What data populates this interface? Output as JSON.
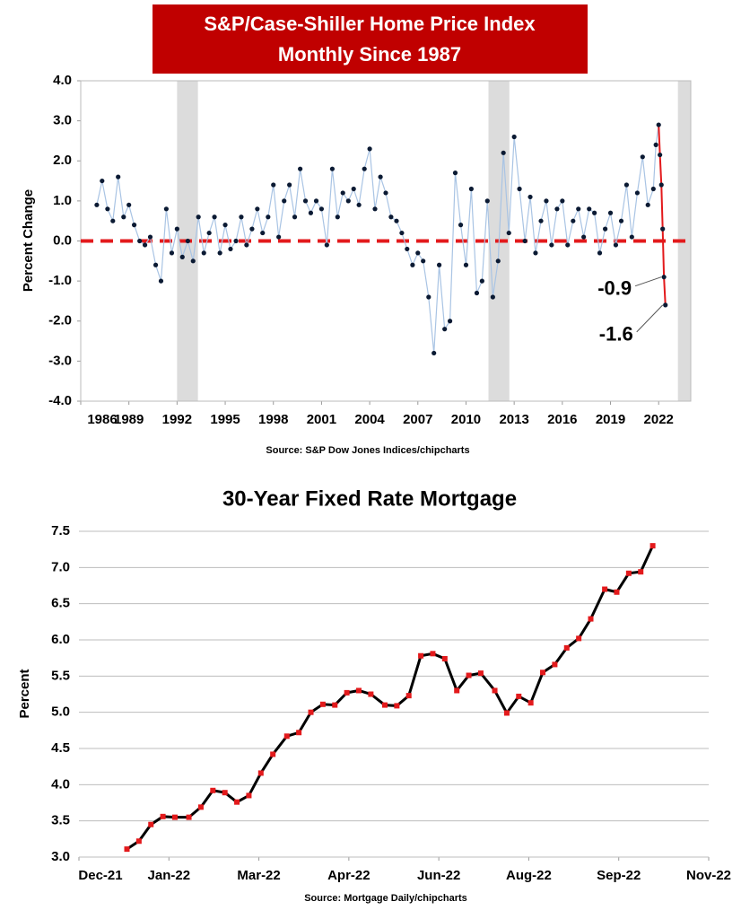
{
  "chart_data": [
    {
      "type": "scatter",
      "title": "S&P/Case-Shiller Home Price Index",
      "subtitle": "Monthly Since 1987",
      "y_label": "Percent Change",
      "source": "Source: S&P Dow Jones Indices/chipcharts",
      "xlim": [
        1986,
        2024
      ],
      "xticks": [
        1986,
        1989,
        1992,
        1995,
        1998,
        2001,
        2004,
        2007,
        2010,
        2013,
        2016,
        2019,
        2022
      ],
      "ylim": [
        -4,
        4
      ],
      "yticks": [
        {
          "value": 4,
          "label": "4.0"
        },
        {
          "value": 3,
          "label": "3.0"
        },
        {
          "value": 2,
          "label": "2.0"
        },
        {
          "value": 1,
          "label": "1.0"
        },
        {
          "value": 0,
          "label": "0.0"
        },
        {
          "value": -1,
          "label": "-1.0"
        },
        {
          "value": -2,
          "label": "-2.0"
        },
        {
          "value": -3,
          "label": "-3.0"
        },
        {
          "value": -4,
          "label": "-4.0"
        }
      ],
      "grid": false,
      "reference_line": 0,
      "reference_color": "#e31a1c",
      "shaded_regions": [
        [
          1992.0,
          1993.3
        ],
        [
          2011.4,
          2012.7
        ],
        [
          2023.2,
          2024
        ]
      ],
      "shade_color": "#dcdcdc",
      "line_color": "#a9c4e4",
      "color": "#0b1a33",
      "highlight_color": "#e31a1c",
      "highlight_start": 106,
      "labeled_points": [
        110,
        111
      ],
      "x": [
        1987,
        1987.33,
        1987.67,
        1988,
        1988.33,
        1988.67,
        1989,
        1989.33,
        1989.67,
        1990,
        1990.33,
        1990.67,
        1991,
        1991.33,
        1991.67,
        1992,
        1992.33,
        1992.67,
        1993,
        1993.33,
        1993.67,
        1994,
        1994.33,
        1994.67,
        1995,
        1995.33,
        1995.67,
        1996,
        1996.33,
        1996.67,
        1997,
        1997.33,
        1997.67,
        1998,
        1998.33,
        1998.67,
        1999,
        1999.33,
        1999.67,
        2000,
        2000.33,
        2000.67,
        2001,
        2001.33,
        2001.67,
        2002,
        2002.33,
        2002.67,
        2003,
        2003.33,
        2003.67,
        2004,
        2004.33,
        2004.67,
        2005,
        2005.33,
        2005.67,
        2006,
        2006.33,
        2006.67,
        2007,
        2007.33,
        2007.67,
        2008,
        2008.33,
        2008.67,
        2009,
        2009.33,
        2009.67,
        2010,
        2010.33,
        2010.67,
        2011,
        2011.33,
        2011.67,
        2012,
        2012.33,
        2012.67,
        2013,
        2013.33,
        2013.67,
        2014,
        2014.33,
        2014.67,
        2015,
        2015.33,
        2015.67,
        2016,
        2016.33,
        2016.67,
        2017,
        2017.33,
        2017.67,
        2018,
        2018.33,
        2018.67,
        2019,
        2019.33,
        2019.67,
        2020,
        2020.33,
        2020.67,
        2021,
        2021.33,
        2021.67,
        2021.83,
        2022.0,
        2022.08,
        2022.17,
        2022.25,
        2022.33,
        2022.42
      ],
      "values": [
        0.9,
        1.5,
        0.8,
        0.5,
        1.6,
        0.6,
        0.9,
        0.4,
        0.0,
        -0.1,
        0.1,
        -0.6,
        -1.0,
        0.8,
        -0.3,
        0.3,
        -0.4,
        0.0,
        -0.5,
        0.6,
        -0.3,
        0.2,
        0.6,
        -0.3,
        0.4,
        -0.2,
        0.0,
        0.6,
        -0.1,
        0.3,
        0.8,
        0.2,
        0.6,
        1.4,
        0.1,
        1.0,
        1.4,
        0.6,
        1.8,
        1.0,
        0.7,
        1.0,
        0.8,
        -0.1,
        1.8,
        0.6,
        1.2,
        1.0,
        1.3,
        0.9,
        1.8,
        2.3,
        0.8,
        1.6,
        1.2,
        0.6,
        0.5,
        0.2,
        -0.2,
        -0.6,
        -0.3,
        -0.5,
        -1.4,
        -2.8,
        -0.6,
        -2.2,
        -2.0,
        1.7,
        0.4,
        -0.6,
        1.3,
        -1.3,
        -1.0,
        1.0,
        -1.4,
        -0.5,
        2.2,
        0.2,
        2.6,
        1.3,
        0.0,
        1.1,
        -0.3,
        0.5,
        1.0,
        -0.1,
        0.8,
        1.0,
        -0.1,
        0.5,
        0.8,
        0.1,
        0.8,
        0.7,
        -0.3,
        0.3,
        0.7,
        -0.1,
        0.5,
        1.4,
        0.1,
        1.2,
        2.1,
        0.9,
        1.3,
        2.4,
        2.9,
        2.15,
        1.4,
        0.3,
        -0.9,
        -1.6
      ]
    },
    {
      "type": "line",
      "title": "30-Year Fixed Rate Mortgage",
      "y_label": "Percent",
      "source": "Source: Mortgage Daily/chipcharts",
      "xlim": [
        0,
        315
      ],
      "xticks": [
        {
          "value": 0,
          "label": "Dec-21"
        },
        {
          "value": 45,
          "label": "Jan-22"
        },
        {
          "value": 90,
          "label": "Mar-22"
        },
        {
          "value": 135,
          "label": "Apr-22"
        },
        {
          "value": 180,
          "label": "Jun-22"
        },
        {
          "value": 225,
          "label": "Aug-22"
        },
        {
          "value": 270,
          "label": "Sep-22"
        },
        {
          "value": 315,
          "label": "Nov-22"
        }
      ],
      "ylim": [
        3,
        7.5
      ],
      "yticks": [
        {
          "value": 3,
          "label": "3.0"
        },
        3.5,
        {
          "value": 4,
          "label": "4.0"
        },
        4.5,
        {
          "value": 5,
          "label": "5.0"
        },
        5.5,
        {
          "value": 6,
          "label": "6.0"
        },
        6.5,
        {
          "value": 7,
          "label": "7.0"
        },
        7.5
      ],
      "grid": true,
      "line_color": "#000000",
      "color": "#e31a1c",
      "x": [
        24,
        30,
        36,
        42,
        48,
        55,
        61,
        67,
        73,
        79,
        85,
        91,
        97,
        104,
        110,
        116,
        122,
        128,
        134,
        140,
        146,
        153,
        159,
        165,
        171,
        177,
        183,
        189,
        195,
        201,
        208,
        214,
        220,
        226,
        232,
        238,
        244,
        250,
        256,
        263,
        269,
        275,
        281,
        287
      ],
      "values": [
        3.11,
        3.22,
        3.45,
        3.56,
        3.55,
        3.55,
        3.69,
        3.92,
        3.89,
        3.76,
        3.85,
        4.16,
        4.42,
        4.67,
        4.72,
        5.0,
        5.11,
        5.1,
        5.27,
        5.3,
        5.25,
        5.1,
        5.09,
        5.23,
        5.78,
        5.81,
        5.74,
        5.3,
        5.51,
        5.54,
        5.3,
        4.99,
        5.22,
        5.13,
        5.55,
        5.66,
        5.89,
        6.02,
        6.29,
        6.7,
        6.66,
        6.92,
        6.94,
        7.3
      ]
    }
  ]
}
